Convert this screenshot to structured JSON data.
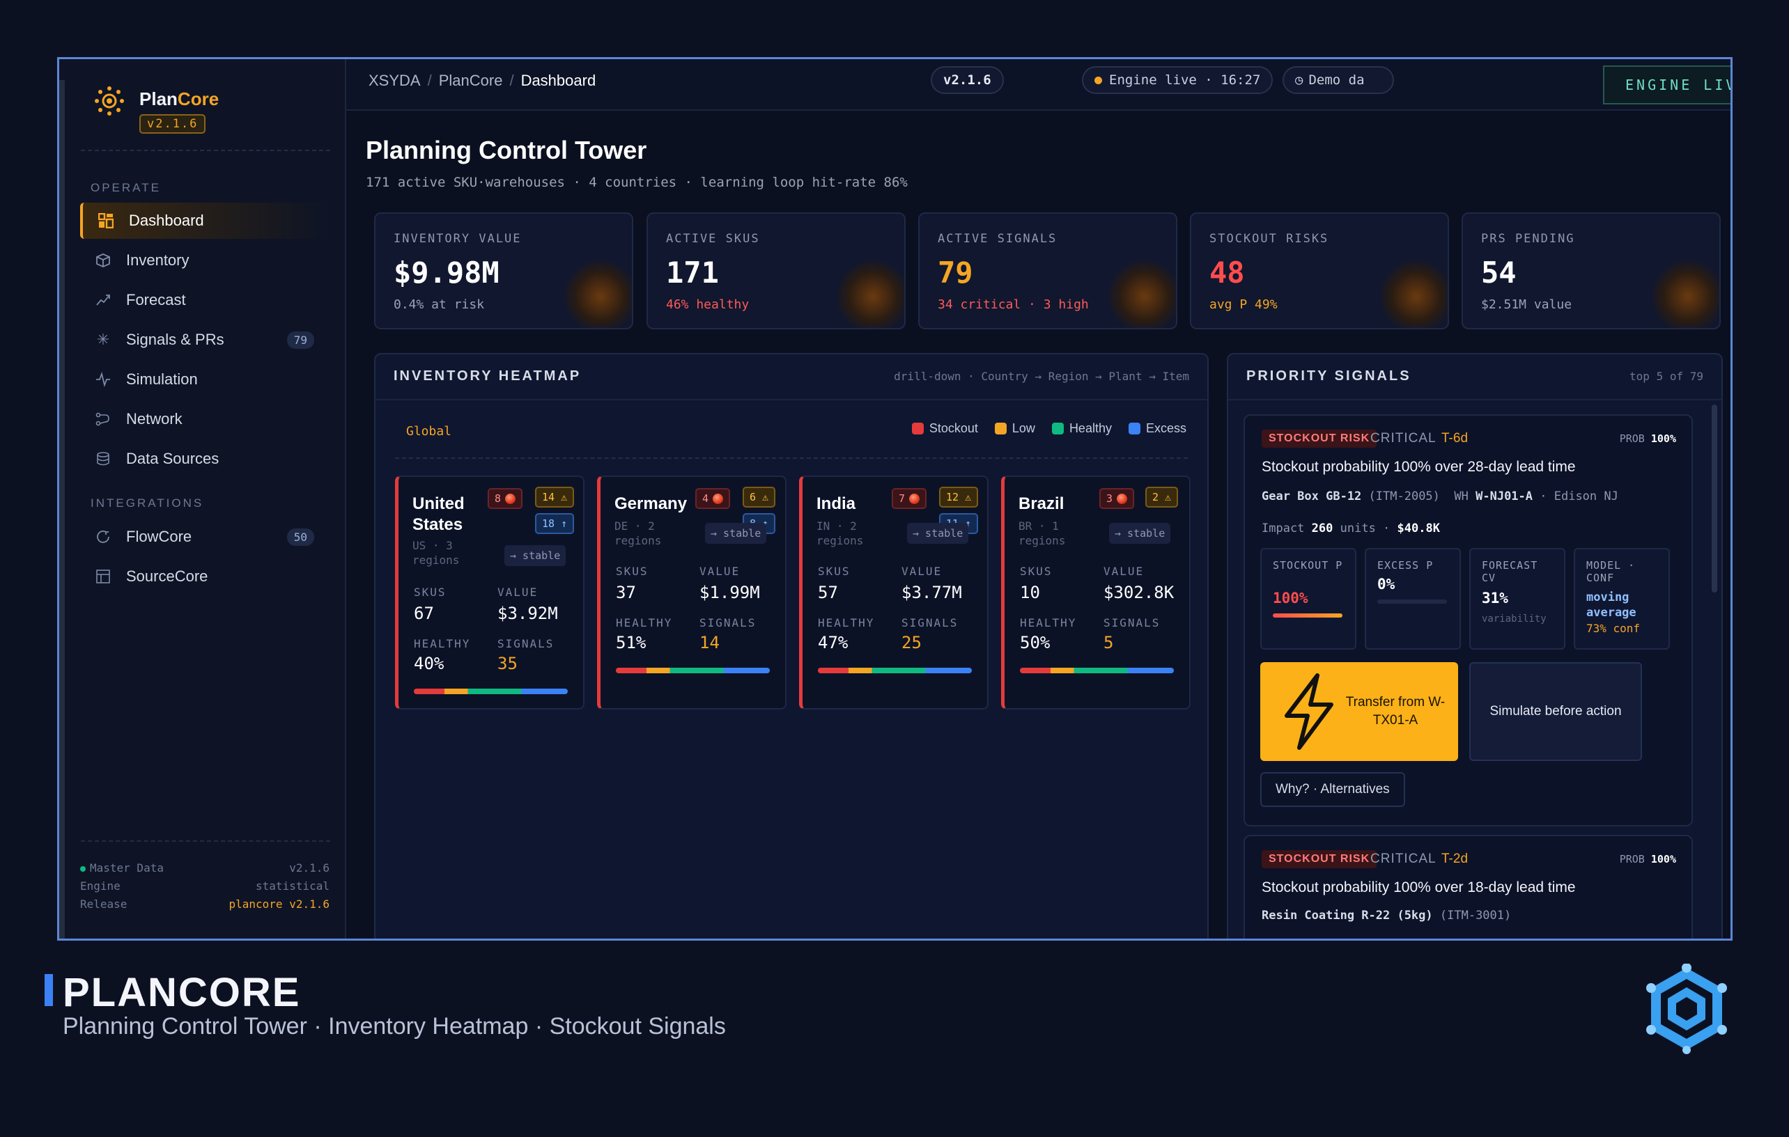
{
  "sidebar": {
    "brand_plan": "Plan",
    "brand_core": "Core",
    "version": "v2.1.6",
    "section_operate": "OPERATE",
    "section_integrations": "INTEGRATIONS",
    "items": [
      {
        "label": "Dashboard",
        "icon": "dashboard-icon"
      },
      {
        "label": "Inventory",
        "icon": "box-icon"
      },
      {
        "label": "Forecast",
        "icon": "trend-icon"
      },
      {
        "label": "Signals & PRs",
        "icon": "signal-icon",
        "badge": "79"
      },
      {
        "label": "Simulation",
        "icon": "pulse-icon"
      },
      {
        "label": "Network",
        "icon": "network-icon"
      },
      {
        "label": "Data Sources",
        "icon": "database-icon"
      }
    ],
    "integrations": [
      {
        "label": "FlowCore",
        "icon": "flow-icon",
        "badge": "50"
      },
      {
        "label": "SourceCore",
        "icon": "grid-icon"
      }
    ],
    "footer": {
      "master_data_label": "Master Data",
      "master_data_value": "v2.1.6",
      "engine_label": "Engine",
      "engine_value": "statistical",
      "release_label": "Release",
      "release_value": "plancore v2.1.6"
    }
  },
  "topbar": {
    "crumb_1": "XSYDA",
    "crumb_2": "PlanCore",
    "crumb_3": "Dashboard",
    "version_pill": "v2.1.6",
    "engine_pill": "Engine live · 16:27",
    "demo_pill": "Demo da",
    "live_banner": "ENGINE LIVE · STATISTICAL MASTER DATA"
  },
  "page": {
    "title": "Planning Control Tower",
    "subtitle": "171 active SKU·warehouses · 4 countries · learning loop hit-rate 86%"
  },
  "kpis": [
    {
      "label": "INVENTORY VALUE",
      "value": "$9.98M",
      "sub": "0.4% at risk",
      "value_color": "#ffffff",
      "sub_color": "#9aa3b8"
    },
    {
      "label": "ACTIVE SKUS",
      "value": "171",
      "sub": "46% healthy",
      "value_color": "#ffffff",
      "sub_color": "#ff5a5a"
    },
    {
      "label": "ACTIVE SIGNALS",
      "value": "79",
      "sub": "34 critical · 3 high",
      "value_color": "#f5a524",
      "sub_color": "#ff5a5a"
    },
    {
      "label": "STOCKOUT RISKS",
      "value": "48",
      "sub": "avg P 49%",
      "value_color": "#ff4d4d",
      "sub_color": "#f5a524"
    },
    {
      "label": "PRS PENDING",
      "value": "54",
      "sub": "$2.51M value",
      "value_color": "#ffffff",
      "sub_color": "#9aa3b8"
    }
  ],
  "heatmap": {
    "title": "INVENTORY HEATMAP",
    "drill": "drill-down · Country → Region → Plant → Item",
    "scope": "Global",
    "legend": [
      {
        "label": "Stockout",
        "color": "#e53b3b"
      },
      {
        "label": "Low",
        "color": "#f5a524"
      },
      {
        "label": "Healthy",
        "color": "#10b981"
      },
      {
        "label": "Excess",
        "color": "#3b82f6"
      }
    ],
    "labels": {
      "skus": "SKUS",
      "value": "VALUE",
      "healthy": "HEALTHY",
      "signals": "SIGNALS",
      "stable": "→ stable"
    },
    "countries": [
      {
        "name": "United States",
        "meta_1": "US · 3",
        "meta_2": "regions",
        "red": "8",
        "amber": "14 ⚠",
        "blue": "18 ↑",
        "skus": "67",
        "value": "$3.92M",
        "healthy": "40%",
        "signals": "35"
      },
      {
        "name": "Germany",
        "meta_1": "DE · 2",
        "meta_2": "regions",
        "red": "4",
        "amber": "6 ⚠",
        "blue": "8 ↑",
        "skus": "37",
        "value": "$1.99M",
        "healthy": "51%",
        "signals": "14"
      },
      {
        "name": "India",
        "meta_1": "IN · 2",
        "meta_2": "regions",
        "red": "7",
        "amber": "12 ⚠",
        "blue": "11 ↑",
        "skus": "57",
        "value": "$3.77M",
        "healthy": "47%",
        "signals": "25"
      },
      {
        "name": "Brazil",
        "meta_1": "BR · 1",
        "meta_2": "regions",
        "red": "3",
        "amber": "2 ⚠",
        "blue": "",
        "skus": "10",
        "value": "$302.8K",
        "healthy": "50%",
        "signals": "5"
      }
    ]
  },
  "signals": {
    "title": "PRIORITY SIGNALS",
    "count": "top 5 of 79",
    "cards": [
      {
        "tag": "STOCKOUT RISK",
        "severity": "CRITICAL",
        "eta": "T-6d",
        "prob_label": "PROB",
        "prob": "100%",
        "headline": "Stockout probability 100% over 28-day lead time",
        "item": "Gear Box GB-12",
        "item_code": "(ITM-2005)",
        "wh_label": "WH",
        "wh": "W-NJ01-A",
        "loc": "· Edison NJ",
        "impact_label": "Impact",
        "impact_units": "260",
        "impact_units_label": "units ·",
        "impact_value": "$40.8K",
        "metrics": [
          {
            "label": "STOCKOUT P",
            "value": "100%",
            "fill": 1.0
          },
          {
            "label": "EXCESS P",
            "value": "0%",
            "fill": 0.0
          },
          {
            "label": "FORECAST CV",
            "value": "31%",
            "note": "variability"
          },
          {
            "label": "MODEL · CONF",
            "value": "moving average",
            "note": "73% conf"
          }
        ],
        "action_primary": "Transfer from W-TX01-A",
        "action_secondary": "Simulate before action",
        "why": "Why? · Alternatives"
      },
      {
        "tag": "STOCKOUT RISK",
        "severity": "CRITICAL",
        "eta": "T-2d",
        "prob_label": "PROB",
        "prob": "100%",
        "headline": "Stockout probability 100% over 18-day lead time",
        "item": "Resin Coating R-22 (5kg)",
        "item_code": "(ITM-3001)"
      }
    ]
  },
  "caption": {
    "title": "PLANCORE",
    "sub": "Planning Control Tower  ·  Inventory Heatmap  ·  Stockout Signals"
  },
  "colors": {
    "accent": "#f5a524",
    "critical": "#e53b3b",
    "healthy": "#10b981",
    "excess": "#3b82f6",
    "frame": "#5c86d6"
  }
}
